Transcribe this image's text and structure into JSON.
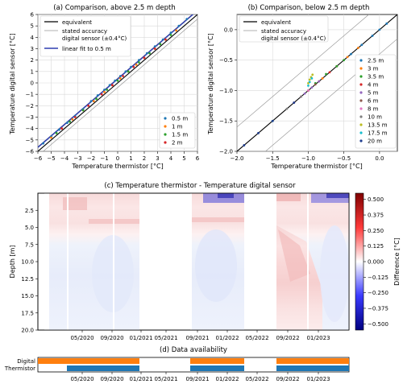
{
  "chart_data": [
    {
      "type": "scatter",
      "title": "(a) Comparison, above 2.5 m depth",
      "xlabel": "Temperature thermistor [°C]",
      "ylabel": "Temperature digital sensor [°C]",
      "xlim": [
        -6,
        6
      ],
      "ylim": [
        -6,
        6
      ],
      "xticks": [
        "−6",
        "−5",
        "−4",
        "−3",
        "−2",
        "−1",
        "0",
        "1",
        "2",
        "3",
        "4",
        "5",
        "6"
      ],
      "yticks": [
        "−6",
        "−5",
        "−4",
        "−3",
        "−2",
        "−1",
        "0",
        "1",
        "2",
        "3",
        "4",
        "5",
        "6"
      ],
      "grid": true,
      "legend_top": [
        "equivalent",
        "stated accuracy",
        "digital sensor (±0.4°C)",
        "linear fit to 0.5 m"
      ],
      "legend_bottom": [
        "0.5 m",
        "1 m",
        "1.5 m",
        "2 m"
      ],
      "series": [
        {
          "name": "0.5 m",
          "color": "#1f77b4",
          "x": [
            -5.6,
            -5.0,
            -4.4,
            -3.8,
            -3.2,
            -2.6,
            -2.0,
            -1.5,
            -1.0,
            -0.6,
            -0.2,
            0.2,
            0.6,
            1.0,
            1.6,
            2.2,
            2.8,
            3.4,
            4.0,
            4.6,
            5.2
          ],
          "y": [
            -5.3,
            -4.7,
            -4.1,
            -3.5,
            -2.9,
            -2.3,
            -1.6,
            -1.1,
            -0.6,
            -0.2,
            0.2,
            0.6,
            1.0,
            1.4,
            2.0,
            2.6,
            3.2,
            3.8,
            4.4,
            5.0,
            5.6
          ]
        },
        {
          "name": "1 m",
          "color": "#ff7f0e",
          "x": [
            -5.0,
            -4.2,
            -3.4,
            -2.6,
            -1.8,
            -1.0,
            -0.4,
            0.2,
            0.8,
            1.4,
            2.0,
            2.8,
            3.6,
            4.4
          ],
          "y": [
            -4.8,
            -4.0,
            -3.2,
            -2.4,
            -1.6,
            -0.8,
            -0.2,
            0.4,
            1.0,
            1.6,
            2.2,
            3.0,
            3.8,
            4.6
          ]
        },
        {
          "name": "1.5 m",
          "color": "#2ca02c",
          "x": [
            -4.6,
            -3.6,
            -2.6,
            -1.6,
            -0.8,
            0.0,
            0.8,
            1.6,
            2.4,
            3.2,
            4.0
          ],
          "y": [
            -4.4,
            -3.4,
            -2.4,
            -1.4,
            -0.6,
            0.2,
            1.0,
            1.8,
            2.6,
            3.4,
            4.2
          ]
        },
        {
          "name": "2 m",
          "color": "#d62728",
          "x": [
            -4.2,
            -3.2,
            -2.2,
            -1.2,
            -0.4,
            0.4,
            1.2,
            2.0,
            2.8,
            3.6
          ],
          "y": [
            -4.0,
            -3.0,
            -2.0,
            -1.0,
            -0.2,
            0.6,
            1.4,
            2.2,
            3.0,
            3.8
          ]
        }
      ]
    },
    {
      "type": "scatter",
      "title": "(b) Comparison, below 2.5 m depth",
      "xlabel": "Temperature thermistor [°C]",
      "ylabel": "Temperature digital sensor [°C]",
      "xlim": [
        -2.0,
        0.25
      ],
      "ylim": [
        -2.0,
        0.25
      ],
      "xticks": [
        "−2.0",
        "−1.5",
        "−1.0",
        "−0.5",
        "0.0"
      ],
      "yticks": [
        "−2.0",
        "−1.5",
        "−1.0",
        "−0.5",
        "0.0"
      ],
      "grid": true,
      "legend_top": [
        "equivalent",
        "stated accuracy",
        "digital sensor (±0.4°C)"
      ],
      "legend_bottom": [
        "2.5 m",
        "3 m",
        "3.5 m",
        "4 m",
        "5 m",
        "6 m",
        "8 m",
        "10 m",
        "13.5 m",
        "17.5 m",
        "20 m"
      ],
      "series": [
        {
          "name": "2.5 m",
          "color": "#1f77b4",
          "x": [
            -0.6,
            -0.4,
            -0.25,
            -0.1,
            0.0,
            0.1
          ],
          "y": [
            -0.6,
            -0.4,
            -0.25,
            -0.1,
            0.0,
            0.1
          ]
        },
        {
          "name": "3 m",
          "color": "#ff7f0e",
          "x": [
            -0.8,
            -0.6,
            -0.45,
            -0.3
          ],
          "y": [
            -0.8,
            -0.6,
            -0.45,
            -0.3
          ]
        },
        {
          "name": "3.5 m",
          "color": "#2ca02c",
          "x": [
            -0.9,
            -0.75,
            -0.6,
            -0.5
          ],
          "y": [
            -0.88,
            -0.73,
            -0.6,
            -0.5
          ]
        },
        {
          "name": "4 m",
          "color": "#d62728",
          "x": [
            -1.0,
            -0.85,
            -0.7
          ],
          "y": [
            -1.0,
            -0.85,
            -0.7
          ]
        },
        {
          "name": "5 m",
          "color": "#9467bd",
          "x": [
            -1.05,
            -0.95,
            -0.85
          ],
          "y": [
            -1.05,
            -0.95,
            -0.85
          ]
        },
        {
          "name": "6 m",
          "color": "#8c564b",
          "x": [
            -1.1,
            -1.0,
            -0.9
          ],
          "y": [
            -1.1,
            -1.0,
            -0.9
          ]
        },
        {
          "name": "8 m",
          "color": "#e377c2",
          "x": [
            -1.2,
            -1.1,
            -1.0
          ],
          "y": [
            -1.2,
            -1.1,
            -1.0
          ]
        },
        {
          "name": "10 m",
          "color": "#7f7f7f",
          "x": [
            -1.3,
            -1.2,
            -1.1
          ],
          "y": [
            -1.3,
            -1.2,
            -1.1
          ]
        },
        {
          "name": "13.5 m",
          "color": "#bcbd22",
          "x": [
            -1.0,
            -0.98,
            -0.96,
            -0.94
          ],
          "y": [
            -0.88,
            -0.82,
            -0.78,
            -0.74
          ]
        },
        {
          "name": "17.5 m",
          "color": "#17becf",
          "x": [
            -1.5,
            -1.0,
            -0.98,
            -0.95
          ],
          "y": [
            -1.5,
            -0.92,
            -0.86,
            -0.8
          ]
        },
        {
          "name": "20 m",
          "color": "#1f3d8f",
          "x": [
            -1.9,
            -1.7,
            -1.5,
            -1.2
          ],
          "y": [
            -1.9,
            -1.7,
            -1.5,
            -1.2
          ]
        }
      ]
    },
    {
      "type": "heatmap",
      "title": "(c) Temperature thermistor - Temperature digital sensor",
      "ylabel": "Depth [m]",
      "colorbar_label": "Difference [°C]",
      "yticks": [
        "2.5",
        "5.0",
        "7.5",
        "10.0",
        "12.5",
        "15.0",
        "17.5",
        "20.0"
      ],
      "xticks": [
        "05/2020",
        "09/2020",
        "01/2021",
        "05/2021",
        "09/2021",
        "01/2022",
        "05/2022",
        "09/2022",
        "01/2023"
      ],
      "colorbar_ticks": [
        "0.500",
        "0.375",
        "0.250",
        "0.125",
        "0.000",
        "−0.125",
        "−0.250",
        "−0.375",
        "−0.500"
      ],
      "clim": [
        -0.55,
        0.55
      ],
      "colormap": "seismic",
      "data_periods": [
        "2020-01 to 2021-02",
        "2021-07 to 2022-02",
        "2022-06 to 2023-05"
      ]
    },
    {
      "type": "bar",
      "title": "(d) Data availability",
      "rows": [
        "Digital",
        "Thermistor"
      ],
      "xticks": [
        "05/2020",
        "09/2020",
        "01/2021",
        "05/2021",
        "09/2021",
        "01/2022",
        "05/2022",
        "09/2022",
        "01/2023"
      ],
      "colors": {
        "Digital": "#ff7f0e",
        "Thermistor": "#1f77b4"
      },
      "Digital": [
        "2020-01 to 2021-02",
        "2021-07 to 2022-02",
        "2022-06 to 2023-05"
      ],
      "Thermistor": [
        "2020-03 to 2021-02",
        "2021-07 to 2022-02",
        "2022-06 to 2023-05"
      ]
    }
  ]
}
